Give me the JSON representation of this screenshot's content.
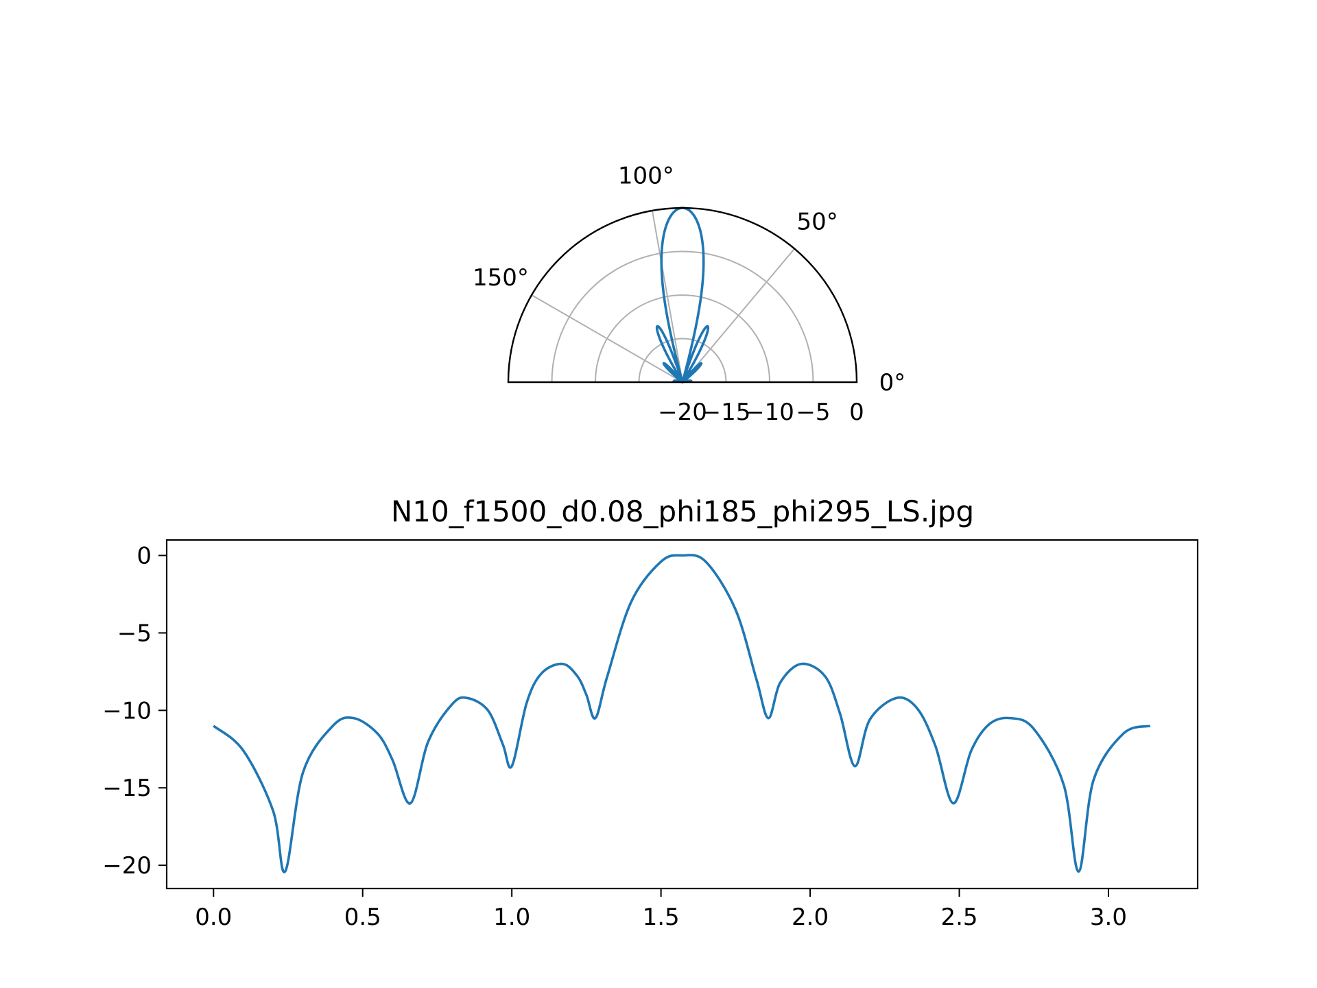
{
  "colors": {
    "series": "#1f77b4",
    "grid": "#b0b0b0",
    "axis": "#000000"
  },
  "chart_data": [
    {
      "type": "line",
      "projection": "polar",
      "theta_range_deg": [
        0,
        180
      ],
      "r_range": [
        -20,
        0
      ],
      "theta_ticks": [
        {
          "value": 0,
          "label": "0°"
        },
        {
          "value": 50,
          "label": "50°"
        },
        {
          "value": 100,
          "label": "100°"
        },
        {
          "value": 150,
          "label": "150°"
        }
      ],
      "r_ticks": [
        {
          "value": -20,
          "label": "−20"
        },
        {
          "value": -15,
          "label": "−15"
        },
        {
          "value": -10,
          "label": "−10"
        },
        {
          "value": -5,
          "label": "−5"
        },
        {
          "value": 0,
          "label": "0"
        }
      ],
      "grid": true,
      "series": [
        {
          "model": "uniform_linear_array",
          "elements": 10,
          "frequency_hz": 1500,
          "spacing_m": 0.08,
          "steer_deg": 90
        }
      ]
    },
    {
      "type": "line",
      "title": "N10_f1500_d0.08_phi185_phi295_LS.jpg",
      "xlim": [
        -0.157,
        3.299
      ],
      "ylim": [
        -21.5,
        1.0
      ],
      "x_ticks": [
        {
          "value": 0.0,
          "label": "0.0"
        },
        {
          "value": 0.5,
          "label": "0.5"
        },
        {
          "value": 1.0,
          "label": "1.0"
        },
        {
          "value": 1.5,
          "label": "1.5"
        },
        {
          "value": 2.0,
          "label": "2.0"
        },
        {
          "value": 2.5,
          "label": "2.5"
        },
        {
          "value": 3.0,
          "label": "3.0"
        }
      ],
      "y_ticks": [
        {
          "value": 0,
          "label": "0"
        },
        {
          "value": -5,
          "label": "−5"
        },
        {
          "value": -10,
          "label": "−10"
        },
        {
          "value": -15,
          "label": "−15"
        },
        {
          "value": -20,
          "label": "−20"
        }
      ],
      "grid": false,
      "series": [
        {
          "x": [
            0.0,
            0.1,
            0.2,
            0.24,
            0.3,
            0.4,
            0.47,
            0.55,
            0.6,
            0.66,
            0.72,
            0.8,
            0.85,
            0.92,
            0.97,
            1.0,
            1.05,
            1.1,
            1.17,
            1.22,
            1.25,
            1.28,
            1.32,
            1.4,
            1.5,
            1.57,
            1.65,
            1.75,
            1.82,
            1.86,
            1.9,
            1.97,
            2.05,
            2.1,
            2.15,
            2.2,
            2.29,
            2.36,
            2.42,
            2.48,
            2.54,
            2.6,
            2.67,
            2.75,
            2.85,
            2.9,
            2.95,
            3.05,
            3.14
          ],
          "y": [
            -11.0,
            -12.6,
            -16.5,
            -20.4,
            -14.0,
            -11.0,
            -10.5,
            -11.5,
            -13.2,
            -16.0,
            -12.0,
            -9.6,
            -9.2,
            -10.0,
            -12.2,
            -13.6,
            -9.5,
            -7.6,
            -7.0,
            -7.8,
            -9.0,
            -10.5,
            -7.8,
            -3.0,
            -0.4,
            0.0,
            -0.4,
            -3.5,
            -8.0,
            -10.5,
            -8.2,
            -7.0,
            -7.8,
            -10.2,
            -13.6,
            -10.6,
            -9.2,
            -9.9,
            -12.3,
            -16.0,
            -12.6,
            -10.9,
            -10.5,
            -11.2,
            -14.8,
            -20.4,
            -14.5,
            -11.5,
            -11.0
          ]
        }
      ]
    }
  ]
}
